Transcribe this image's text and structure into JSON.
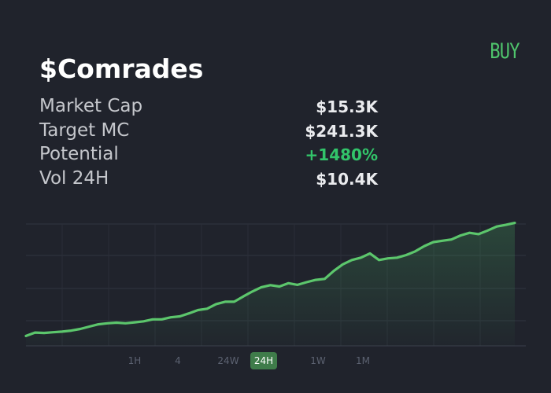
{
  "header": {
    "buy_label": "BUY",
    "title": "$Comrades"
  },
  "stats": {
    "market_cap": {
      "label": "Market Cap",
      "value": "$15.3K"
    },
    "target_mc": {
      "label": "Target MC",
      "value": "$241.3K"
    },
    "potential": {
      "label": "Potential",
      "value": "+1480%"
    },
    "vol_24h": {
      "label": "Vol 24H",
      "value": "$10.4K"
    }
  },
  "timeframes": {
    "items": [
      "1H",
      "4",
      "24W",
      "24H",
      "1W",
      "1M"
    ],
    "selected": "24H"
  },
  "colors": {
    "background": "#20232c",
    "accent_green": "#4fc46c",
    "positive": "#32c46a",
    "line": "#5cc66c",
    "active_tab": "#3f7c4a"
  },
  "chart_data": {
    "type": "area",
    "grid": true,
    "values": [
      3,
      4,
      3.9,
      4.1,
      4.3,
      4.6,
      5.1,
      5.8,
      6.5,
      6.8,
      7.0,
      6.8,
      7.1,
      7.4,
      8.0,
      8.0,
      8.6,
      8.9,
      9.8,
      10.8,
      11.2,
      12.6,
      13.3,
      13.3,
      14.9,
      16.4,
      17.7,
      18.3,
      17.9,
      18.9,
      18.4,
      19.2,
      19.9,
      20.2,
      22.6,
      24.6,
      25.9,
      26.6,
      27.9,
      25.9,
      26.4,
      26.6,
      27.4,
      28.5,
      30.1,
      31.3,
      31.7,
      32.1,
      33.3,
      34.1,
      33.7,
      34.8,
      36.0,
      36.5,
      37.1
    ],
    "ylim": [
      0,
      37
    ]
  }
}
